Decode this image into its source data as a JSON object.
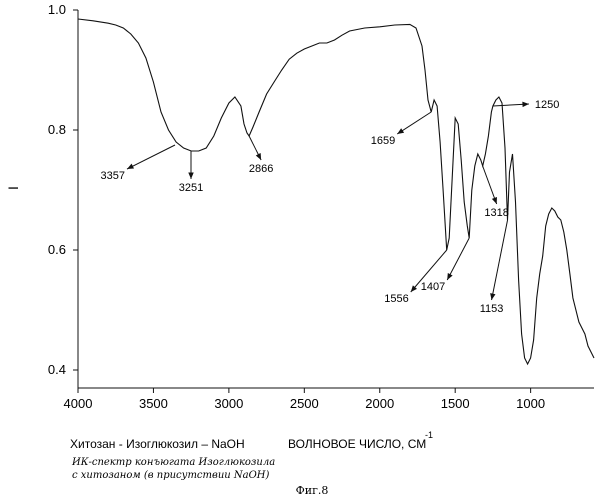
{
  "chart_data": {
    "type": "line",
    "title": "",
    "ylabel": "I",
    "xlabel_prefix": "Хитозан -  Изоглюкозил – NaOH",
    "xlabel": "ВОЛНОВОЕ ЧИСЛО, СМ",
    "xlabel_superscript": "-1",
    "xlim": [
      4000,
      580
    ],
    "ylim": [
      0.37,
      1.0
    ],
    "x_ticks": [
      4000,
      3500,
      3000,
      2500,
      2000,
      1500,
      1000
    ],
    "x_tick_labels": [
      "4000",
      "3500",
      "3000",
      "2500",
      "2000",
      "1500",
      "1000"
    ],
    "y_ticks": [
      1.0,
      0.8,
      0.6,
      0.4
    ],
    "y_tick_labels": [
      "1.0",
      "0.8",
      "0.6",
      "0.4"
    ],
    "grid": false,
    "series": [
      {
        "x": [
          4000,
          3900,
          3800,
          3750,
          3700,
          3650,
          3600,
          3550,
          3500,
          3450,
          3400,
          3350,
          3300,
          3250,
          3200,
          3150,
          3100,
          3050,
          3000,
          2960,
          2920,
          2900,
          2880,
          2866,
          2840,
          2800,
          2750,
          2700,
          2650,
          2600,
          2550,
          2500,
          2450,
          2400,
          2350,
          2300,
          2250,
          2200,
          2100,
          2000,
          1900,
          1800,
          1760,
          1720,
          1700,
          1680,
          1659,
          1640,
          1620,
          1600,
          1580,
          1556,
          1540,
          1520,
          1500,
          1480,
          1460,
          1440,
          1420,
          1407,
          1390,
          1370,
          1350,
          1330,
          1318,
          1300,
          1280,
          1260,
          1250,
          1230,
          1210,
          1190,
          1170,
          1153,
          1140,
          1120,
          1100,
          1080,
          1060,
          1040,
          1020,
          1000,
          980,
          960,
          940,
          920,
          900,
          880,
          860,
          840,
          820,
          800,
          780,
          760,
          740,
          720,
          700,
          680,
          660,
          640,
          620,
          600,
          580
        ],
        "y": [
          0.985,
          0.982,
          0.978,
          0.975,
          0.97,
          0.96,
          0.945,
          0.92,
          0.88,
          0.83,
          0.8,
          0.78,
          0.77,
          0.765,
          0.765,
          0.77,
          0.79,
          0.82,
          0.845,
          0.855,
          0.84,
          0.81,
          0.795,
          0.79,
          0.805,
          0.83,
          0.86,
          0.88,
          0.9,
          0.918,
          0.928,
          0.935,
          0.94,
          0.945,
          0.945,
          0.95,
          0.958,
          0.965,
          0.97,
          0.972,
          0.975,
          0.976,
          0.97,
          0.94,
          0.9,
          0.85,
          0.83,
          0.85,
          0.84,
          0.78,
          0.7,
          0.6,
          0.62,
          0.72,
          0.82,
          0.81,
          0.75,
          0.68,
          0.64,
          0.62,
          0.7,
          0.74,
          0.76,
          0.75,
          0.74,
          0.76,
          0.79,
          0.83,
          0.84,
          0.85,
          0.855,
          0.845,
          0.77,
          0.65,
          0.73,
          0.76,
          0.68,
          0.55,
          0.46,
          0.42,
          0.41,
          0.42,
          0.45,
          0.52,
          0.56,
          0.59,
          0.64,
          0.66,
          0.67,
          0.665,
          0.655,
          0.65,
          0.63,
          0.6,
          0.56,
          0.52,
          0.5,
          0.48,
          0.47,
          0.46,
          0.44,
          0.43,
          0.42
        ]
      }
    ],
    "annotations": [
      {
        "label": "3357",
        "x": 3357,
        "y": 0.775
      },
      {
        "label": "3251",
        "x": 3251,
        "y": 0.765
      },
      {
        "label": "2866",
        "x": 2866,
        "y": 0.79
      },
      {
        "label": "1659",
        "x": 1659,
        "y": 0.83
      },
      {
        "label": "1556",
        "x": 1556,
        "y": 0.6
      },
      {
        "label": "1407",
        "x": 1407,
        "y": 0.62
      },
      {
        "label": "1318",
        "x": 1318,
        "y": 0.74
      },
      {
        "label": "1250",
        "x": 1250,
        "y": 0.84
      },
      {
        "label": "1153",
        "x": 1153,
        "y": 0.65
      }
    ]
  },
  "handwritten_note": {
    "line1": "ИК-спектр конъюгата Изоглюкозила",
    "line2": "с хитозаном (в присутствии NaOH)"
  },
  "figure_caption": "Фиг.8"
}
